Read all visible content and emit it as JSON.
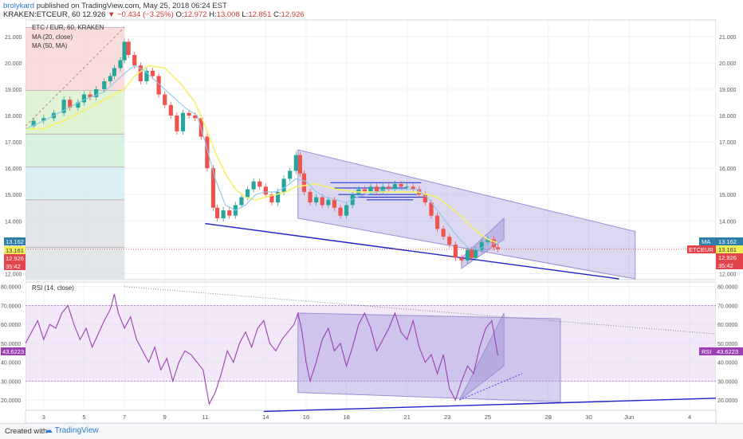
{
  "header": {
    "user": "brolykard",
    "published": " published on TradingView.com, May 25, 2018 06:24 EST",
    "symbol": "KRAKEN:ETCEUR, 60",
    "last": "12.926",
    "change": "−0.434 (−3.25%)",
    "open_label": "O:",
    "open": "12.972",
    "high_label": "H:",
    "high": "13.008",
    "low_label": "L:",
    "low": "12.851",
    "close_label": "C:",
    "close": "12.926"
  },
  "legend": {
    "title": "ETC / EUR, 60, KRAKEN",
    "ma1": "MA (20, close)",
    "ma2": "MA (50, MA)",
    "rsi": "RSI (14, close)"
  },
  "badges": {
    "left_price_top": "13.162",
    "left_price_ma": "13.161",
    "left_price_last": "12.926",
    "left_countdown": "35:42",
    "right_ma_label": "MA",
    "right_ma_value": "13.162",
    "right_sym_label": "ETCEUR",
    "right_sym_value": "13.161",
    "right_last": "12.926",
    "right_countdown": "35:42",
    "rsi_left": "43.6223",
    "rsi_right_label": "RSI",
    "rsi_right_value": "43.6223"
  },
  "footer": {
    "created": "Created with",
    "brand": "TradingView"
  },
  "colors": {
    "up": "#26a69a",
    "down": "#ef5350",
    "ma20": "#90c8e8",
    "ma50": "#f6f06a",
    "rsi": "#9c3fb3",
    "channel": "#9b8fd6",
    "trend": "#2020c8"
  },
  "chart_data": [
    {
      "type": "candlestick",
      "title": "ETC / EUR, 60, KRAKEN",
      "ylim": [
        11.8,
        21.6
      ],
      "y_ticks": [
        "12.000",
        "13.000",
        "14.000",
        "15.000",
        "16.000",
        "17.000",
        "18.000",
        "19.000",
        "20.000",
        "21.000"
      ],
      "x_ticks": [
        "3",
        "5",
        "7",
        "9",
        "11",
        "14",
        "16",
        "18",
        "21",
        "23",
        "25",
        "28",
        "30",
        "Jun",
        "4"
      ],
      "x_tick_days": [
        3,
        5,
        7,
        9,
        11,
        14,
        16,
        18,
        21,
        23,
        25,
        28,
        30,
        32,
        35
      ],
      "x_range_days": [
        2.1,
        36.3
      ],
      "price_path": [
        [
          2.1,
          17.6
        ],
        [
          2.5,
          17.8
        ],
        [
          3.0,
          17.9
        ],
        [
          3.5,
          18.1
        ],
        [
          4.0,
          18.6
        ],
        [
          4.3,
          18.3
        ],
        [
          4.7,
          18.5
        ],
        [
          5.0,
          18.8
        ],
        [
          5.3,
          18.7
        ],
        [
          5.6,
          19.0
        ],
        [
          6.0,
          19.3
        ],
        [
          6.3,
          19.5
        ],
        [
          6.5,
          19.8
        ],
        [
          6.8,
          20.1
        ],
        [
          7.0,
          20.8
        ],
        [
          7.2,
          20.3
        ],
        [
          7.5,
          19.9
        ],
        [
          7.8,
          19.3
        ],
        [
          8.1,
          19.7
        ],
        [
          8.4,
          19.5
        ],
        [
          8.7,
          18.8
        ],
        [
          9.0,
          18.4
        ],
        [
          9.3,
          18.0
        ],
        [
          9.6,
          17.4
        ],
        [
          9.9,
          18.1
        ],
        [
          10.2,
          18.0
        ],
        [
          10.5,
          17.9
        ],
        [
          10.8,
          17.2
        ],
        [
          11.1,
          16.0
        ],
        [
          11.4,
          14.5
        ],
        [
          11.6,
          14.1
        ],
        [
          11.9,
          14.4
        ],
        [
          12.2,
          14.2
        ],
        [
          12.5,
          14.6
        ],
        [
          12.8,
          14.9
        ],
        [
          13.1,
          15.2
        ],
        [
          13.4,
          15.5
        ],
        [
          13.7,
          15.3
        ],
        [
          14.0,
          15.0
        ],
        [
          14.3,
          14.7
        ],
        [
          14.6,
          15.1
        ],
        [
          14.9,
          15.6
        ],
        [
          15.2,
          15.9
        ],
        [
          15.5,
          16.5
        ],
        [
          15.7,
          15.8
        ],
        [
          15.9,
          15.1
        ],
        [
          16.2,
          14.7
        ],
        [
          16.5,
          14.9
        ],
        [
          16.8,
          14.6
        ],
        [
          17.1,
          14.8
        ],
        [
          17.4,
          14.5
        ],
        [
          17.7,
          14.2
        ],
        [
          18.0,
          14.6
        ],
        [
          18.3,
          15.0
        ],
        [
          18.6,
          15.2
        ],
        [
          18.9,
          15.1
        ],
        [
          19.2,
          15.3
        ],
        [
          19.5,
          15.1
        ],
        [
          19.8,
          15.3
        ],
        [
          20.1,
          15.2
        ],
        [
          20.4,
          15.4
        ],
        [
          20.7,
          15.3
        ],
        [
          21.0,
          15.3
        ],
        [
          21.3,
          15.2
        ],
        [
          21.6,
          15.0
        ],
        [
          21.9,
          14.7
        ],
        [
          22.2,
          14.2
        ],
        [
          22.5,
          13.7
        ],
        [
          22.8,
          13.4
        ],
        [
          23.1,
          13.1
        ],
        [
          23.4,
          12.6
        ],
        [
          23.7,
          12.5
        ],
        [
          24.0,
          12.9
        ],
        [
          24.2,
          12.6
        ],
        [
          24.4,
          12.9
        ],
        [
          24.7,
          13.2
        ],
        [
          25.0,
          13.3
        ],
        [
          25.3,
          13.0
        ],
        [
          25.5,
          12.93
        ]
      ],
      "ma20_path": [
        [
          2.1,
          17.5
        ],
        [
          3.0,
          17.8
        ],
        [
          4.0,
          18.2
        ],
        [
          5.0,
          18.6
        ],
        [
          6.0,
          18.9
        ],
        [
          7.0,
          19.6
        ],
        [
          7.5,
          19.9
        ],
        [
          8.0,
          19.7
        ],
        [
          9.0,
          19.0
        ],
        [
          10.0,
          18.3
        ],
        [
          10.6,
          18.0
        ],
        [
          11.0,
          17.0
        ],
        [
          11.5,
          15.6
        ],
        [
          12.0,
          14.6
        ],
        [
          12.5,
          14.4
        ],
        [
          13.0,
          14.6
        ],
        [
          13.5,
          15.0
        ],
        [
          14.0,
          15.1
        ],
        [
          14.5,
          15.1
        ],
        [
          15.0,
          15.3
        ],
        [
          15.5,
          15.6
        ],
        [
          16.0,
          15.5
        ],
        [
          16.5,
          15.1
        ],
        [
          17.0,
          14.9
        ],
        [
          17.5,
          14.8
        ],
        [
          18.0,
          14.7
        ],
        [
          18.5,
          14.9
        ],
        [
          19.0,
          15.0
        ],
        [
          19.5,
          15.1
        ],
        [
          20.0,
          15.2
        ],
        [
          20.5,
          15.2
        ],
        [
          21.0,
          15.2
        ],
        [
          21.5,
          15.2
        ],
        [
          22.0,
          14.9
        ],
        [
          22.5,
          14.4
        ],
        [
          23.0,
          13.9
        ],
        [
          23.5,
          13.4
        ],
        [
          24.0,
          13.0
        ],
        [
          24.5,
          12.9
        ],
        [
          25.0,
          13.1
        ],
        [
          25.5,
          13.16
        ]
      ],
      "ma50_path": [
        [
          2.1,
          17.5
        ],
        [
          3.0,
          17.5
        ],
        [
          4.0,
          17.8
        ],
        [
          5.0,
          18.2
        ],
        [
          6.0,
          18.6
        ],
        [
          7.0,
          19.0
        ],
        [
          7.5,
          19.5
        ],
        [
          8.2,
          19.9
        ],
        [
          9.0,
          19.8
        ],
        [
          9.8,
          19.2
        ],
        [
          10.5,
          18.5
        ],
        [
          11.0,
          17.6
        ],
        [
          11.5,
          16.6
        ],
        [
          12.0,
          15.8
        ],
        [
          12.5,
          15.2
        ],
        [
          13.0,
          14.9
        ],
        [
          13.5,
          14.8
        ],
        [
          14.0,
          14.9
        ],
        [
          14.5,
          15.0
        ],
        [
          15.0,
          15.1
        ],
        [
          15.5,
          15.3
        ],
        [
          16.5,
          15.4
        ],
        [
          17.5,
          15.2
        ],
        [
          18.5,
          15.1
        ],
        [
          19.5,
          15.1
        ],
        [
          20.5,
          15.1
        ],
        [
          21.5,
          15.1
        ],
        [
          22.5,
          14.9
        ],
        [
          23.5,
          14.3
        ],
        [
          24.3,
          13.7
        ],
        [
          25.0,
          13.3
        ],
        [
          25.5,
          13.16
        ]
      ],
      "horizontal_levels": [
        {
          "day_start": 2.1,
          "day_end": 7.0,
          "y": 21.35,
          "fill": "#f4b3b3"
        },
        {
          "day_start": 2.1,
          "day_end": 7.0,
          "y": 18.95,
          "fill": "#f7d1d1"
        },
        {
          "day_start": 2.1,
          "day_end": 7.0,
          "y": 17.3,
          "fill": "#d6f0c6"
        },
        {
          "day_start": 2.1,
          "day_end": 7.0,
          "y": 16.05,
          "fill": "#c9efd4"
        },
        {
          "day_start": 2.1,
          "day_end": 7.0,
          "y": 14.8,
          "fill": "#cdebf1"
        },
        {
          "day_start": 2.1,
          "day_end": 7.0,
          "y": 13.0,
          "fill": "#d9dde2"
        },
        {
          "day_start": 2.1,
          "day_end": 7.0,
          "y": 11.8,
          "fill": "#d9dde2"
        }
      ],
      "channel": [
        [
          15.6,
          16.7
        ],
        [
          32.3,
          13.6
        ],
        [
          32.3,
          11.8
        ],
        [
          15.6,
          14.1
        ]
      ],
      "small_channel": [
        [
          23.7,
          12.6
        ],
        [
          25.8,
          14.1
        ],
        [
          25.8,
          13.3
        ],
        [
          23.7,
          12.2
        ]
      ],
      "trendline": [
        [
          11.0,
          13.9
        ],
        [
          31.5,
          11.8
        ]
      ],
      "box_levels": [
        [
          17.2,
          15.45,
          21.7
        ],
        [
          17.4,
          15.25,
          21.0
        ],
        [
          17.6,
          15.0,
          21.5
        ],
        [
          18.2,
          14.9,
          21.9
        ],
        [
          19.0,
          14.8,
          21.3
        ]
      ],
      "last_price": 12.926,
      "ma_value": 13.161
    },
    {
      "type": "line",
      "title": "RSI (14, close)",
      "ylim": [
        15,
        82
      ],
      "y_ticks": [
        "20.0000",
        "30.0000",
        "40.0000",
        "50.0000",
        "60.0000",
        "70.0000",
        "80.0000"
      ],
      "band": [
        30,
        70
      ],
      "rsi_path": [
        [
          2.1,
          50
        ],
        [
          2.4,
          56
        ],
        [
          2.7,
          62
        ],
        [
          3.0,
          52
        ],
        [
          3.3,
          60
        ],
        [
          3.6,
          58
        ],
        [
          3.9,
          66
        ],
        [
          4.2,
          70
        ],
        [
          4.5,
          60
        ],
        [
          4.8,
          52
        ],
        [
          5.1,
          58
        ],
        [
          5.4,
          48
        ],
        [
          5.7,
          55
        ],
        [
          6.0,
          62
        ],
        [
          6.3,
          68
        ],
        [
          6.5,
          76
        ],
        [
          6.7,
          66
        ],
        [
          7.0,
          58
        ],
        [
          7.3,
          64
        ],
        [
          7.6,
          52
        ],
        [
          7.9,
          46
        ],
        [
          8.2,
          40
        ],
        [
          8.5,
          48
        ],
        [
          8.8,
          36
        ],
        [
          9.1,
          42
        ],
        [
          9.4,
          30
        ],
        [
          9.7,
          40
        ],
        [
          10.0,
          46
        ],
        [
          10.3,
          44
        ],
        [
          10.6,
          40
        ],
        [
          10.9,
          36
        ],
        [
          11.2,
          18
        ],
        [
          11.5,
          24
        ],
        [
          11.8,
          34
        ],
        [
          12.1,
          46
        ],
        [
          12.4,
          40
        ],
        [
          12.7,
          50
        ],
        [
          13.0,
          56
        ],
        [
          13.3,
          48
        ],
        [
          13.6,
          58
        ],
        [
          13.9,
          62
        ],
        [
          14.2,
          50
        ],
        [
          14.5,
          46
        ],
        [
          14.8,
          52
        ],
        [
          15.1,
          56
        ],
        [
          15.4,
          60
        ],
        [
          15.6,
          66
        ],
        [
          15.8,
          56
        ],
        [
          16.0,
          40
        ],
        [
          16.2,
          30
        ],
        [
          16.5,
          40
        ],
        [
          16.8,
          52
        ],
        [
          17.1,
          58
        ],
        [
          17.4,
          46
        ],
        [
          17.7,
          50
        ],
        [
          18.0,
          38
        ],
        [
          18.3,
          48
        ],
        [
          18.6,
          60
        ],
        [
          18.9,
          66
        ],
        [
          19.2,
          58
        ],
        [
          19.5,
          46
        ],
        [
          19.8,
          52
        ],
        [
          20.1,
          58
        ],
        [
          20.4,
          66
        ],
        [
          20.7,
          56
        ],
        [
          21.0,
          52
        ],
        [
          21.3,
          62
        ],
        [
          21.6,
          48
        ],
        [
          21.9,
          40
        ],
        [
          22.2,
          44
        ],
        [
          22.5,
          34
        ],
        [
          22.8,
          44
        ],
        [
          23.1,
          26
        ],
        [
          23.4,
          20
        ],
        [
          23.7,
          30
        ],
        [
          24.0,
          38
        ],
        [
          24.3,
          34
        ],
        [
          24.6,
          48
        ],
        [
          24.9,
          58
        ],
        [
          25.2,
          62
        ],
        [
          25.5,
          43.6
        ]
      ],
      "channel": [
        [
          15.6,
          66
        ],
        [
          28.6,
          63
        ],
        [
          28.6,
          19
        ],
        [
          15.6,
          24
        ]
      ],
      "small_channel": [
        [
          23.6,
          20
        ],
        [
          25.8,
          66
        ],
        [
          25.8,
          38
        ],
        [
          23.6,
          20
        ]
      ],
      "trendline": [
        [
          13.9,
          14
        ],
        [
          36.3,
          21
        ]
      ],
      "dotted_down": [
        [
          7.0,
          80
        ],
        [
          36.3,
          55
        ]
      ],
      "dotted_up": [
        [
          23.6,
          20
        ],
        [
          26.7,
          34
        ]
      ],
      "last_value": 43.6223
    }
  ]
}
